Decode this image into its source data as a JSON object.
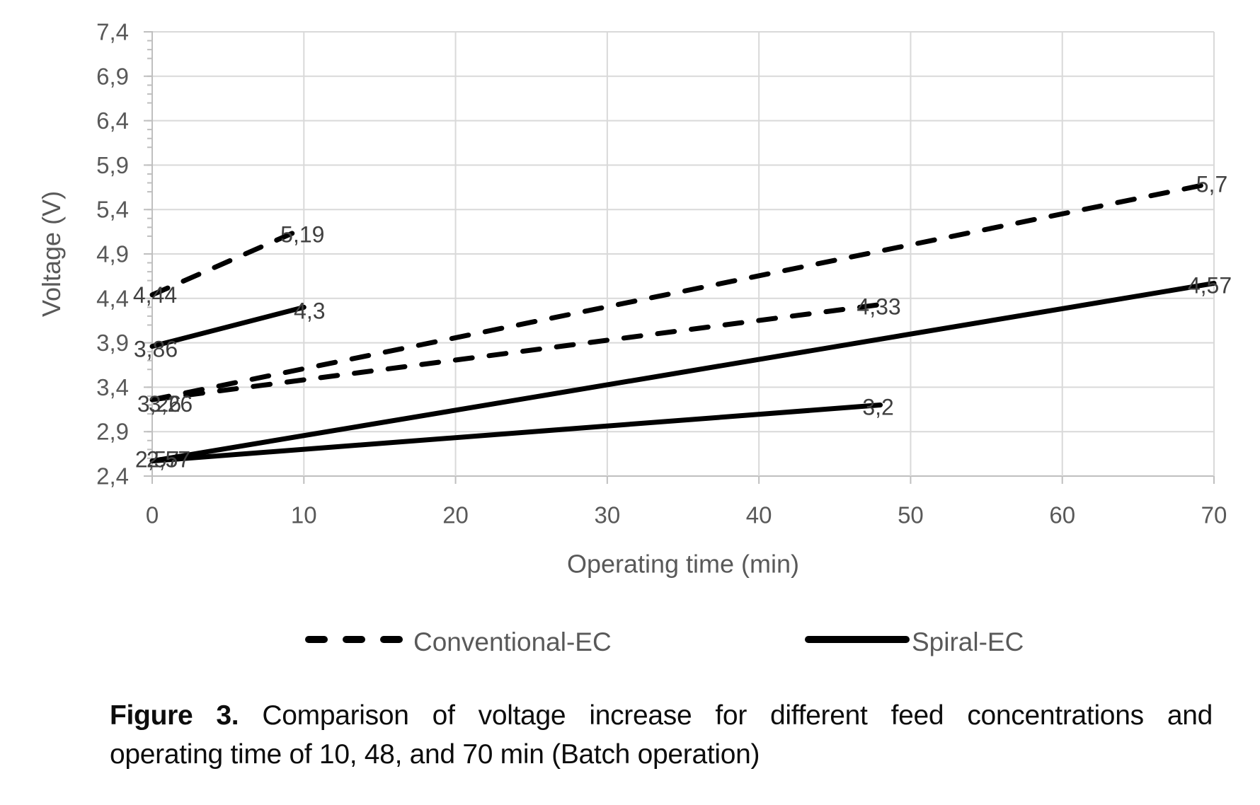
{
  "chart_data": {
    "type": "line",
    "title": "",
    "xlabel": "Operating time (min)",
    "ylabel": "Voltage (V)",
    "xlim": [
      0,
      70
    ],
    "ylim": [
      2.4,
      7.4
    ],
    "grid": true,
    "decimal_separator": ",",
    "x_tick_values": [
      0,
      10,
      20,
      30,
      40,
      50,
      60,
      70
    ],
    "x_tick_labels": [
      "0",
      "10",
      "20",
      "30",
      "40",
      "50",
      "60",
      "70"
    ],
    "y_tick_values": [
      2.4,
      2.9,
      3.4,
      3.9,
      4.4,
      4.9,
      5.4,
      5.9,
      6.4,
      6.9,
      7.4
    ],
    "y_tick_labels": [
      "2,4",
      "2,9",
      "3,4",
      "3,9",
      "4,4",
      "4,9",
      "5,4",
      "5,9",
      "6,4",
      "6,9",
      "7,4"
    ],
    "legend_position": "bottom",
    "colors": {
      "series": "#000000",
      "grid": "#d9d9d9",
      "axis": "#bfbfbf",
      "tick_text": "#595959",
      "data_label_text": "#404040"
    },
    "series": [
      {
        "name": "Conventional-EC",
        "style": "dashed",
        "color": "#000000",
        "runs": [
          {
            "x": [
              0,
              10
            ],
            "y": [
              4.44,
              5.19
            ],
            "point_labels": [
              "4,44",
              "5,19"
            ]
          },
          {
            "x": [
              0,
              48
            ],
            "y": [
              3.26,
              4.33
            ],
            "point_labels": [
              "3,26",
              "4,33"
            ]
          },
          {
            "x": [
              0,
              70
            ],
            "y": [
              3.26,
              5.7
            ],
            "point_labels": [
              "3,26",
              "5,7"
            ]
          }
        ]
      },
      {
        "name": "Spiral-EC",
        "style": "solid",
        "color": "#000000",
        "runs": [
          {
            "x": [
              0,
              10
            ],
            "y": [
              3.86,
              4.3
            ],
            "point_labels": [
              "3,86",
              "4,3"
            ]
          },
          {
            "x": [
              0,
              48
            ],
            "y": [
              2.57,
              3.2
            ],
            "point_labels": [
              "2,57",
              "3,2"
            ]
          },
          {
            "x": [
              0,
              70
            ],
            "y": [
              2.57,
              4.57
            ],
            "point_labels": [
              "2,57",
              "4,57"
            ]
          }
        ]
      }
    ]
  },
  "legend": {
    "items": [
      {
        "label": "Conventional-EC",
        "style": "dashed"
      },
      {
        "label": "Spiral-EC",
        "style": "solid"
      }
    ]
  },
  "caption": {
    "prefix": "Figure 3.",
    "line1_rest": "Comparison of voltage increase for different feed concentrations and",
    "line2": "operating time of 10, 48, and 70 min (Batch operation)"
  }
}
